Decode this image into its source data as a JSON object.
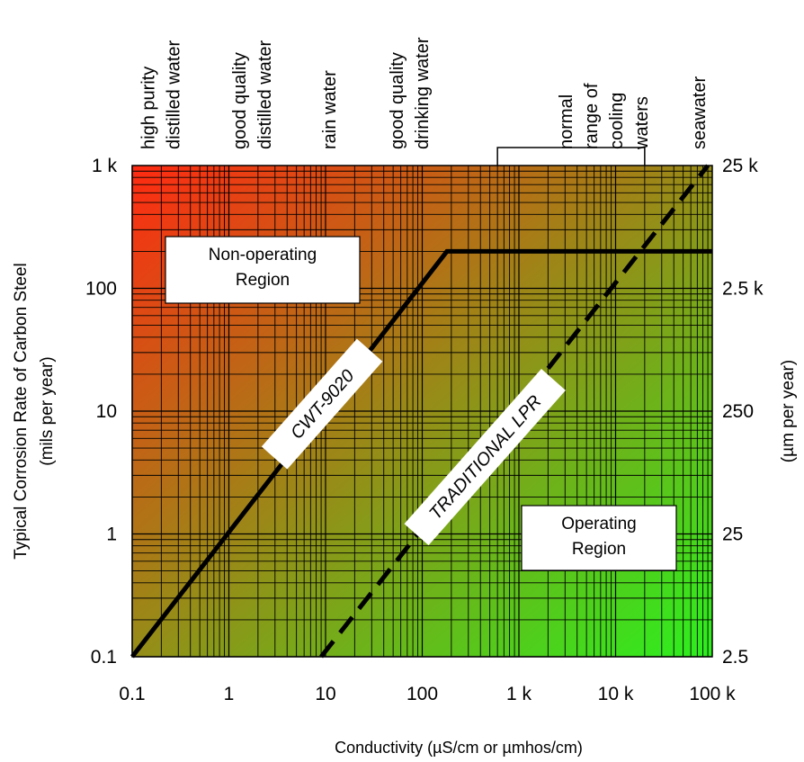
{
  "chart_data": {
    "type": "line",
    "x_scale": "log",
    "y_scale": "log",
    "xlim": [
      0.1,
      100000
    ],
    "ylim": [
      0.1,
      1000
    ],
    "y2lim": [
      2.5,
      25000
    ],
    "grid": true,
    "background_gradient": {
      "top_left": "#ff2a12",
      "bottom_right": "#2cf01e"
    },
    "xlabel": "Conductivity (µS/cm or µmhos/cm)",
    "ylabel_lines": [
      "Typical Corrosion Rate of Carbon Steel",
      "(mils per year)"
    ],
    "y2label": "(µm per year)",
    "x_ticks": [
      {
        "value": 0.1,
        "label": "0.1"
      },
      {
        "value": 1,
        "label": "1"
      },
      {
        "value": 10,
        "label": "10"
      },
      {
        "value": 100,
        "label": "100"
      },
      {
        "value": 1000,
        "label": "1 k"
      },
      {
        "value": 10000,
        "label": "10 k"
      },
      {
        "value": 100000,
        "label": "100 k"
      }
    ],
    "y_ticks": [
      {
        "value": 0.1,
        "label": "0.1"
      },
      {
        "value": 1,
        "label": "1"
      },
      {
        "value": 10,
        "label": "10"
      },
      {
        "value": 100,
        "label": "100"
      },
      {
        "value": 1000,
        "label": "1 k"
      }
    ],
    "y2_ticks": [
      {
        "value": 2.5,
        "label": "2.5"
      },
      {
        "value": 25,
        "label": "25"
      },
      {
        "value": 250,
        "label": "250"
      },
      {
        "value": 2500,
        "label": "2.5 k"
      },
      {
        "value": 25000,
        "label": "25 k"
      }
    ],
    "top_annotations": [
      {
        "x": 0.12,
        "lines": [
          "high purity",
          "distilled water"
        ]
      },
      {
        "x": 1.05,
        "lines": [
          "good quality",
          "distilled water"
        ]
      },
      {
        "x": 9.0,
        "lines": [
          "rain water"
        ]
      },
      {
        "x": 45,
        "lines": [
          "good quality",
          "drinking water"
        ]
      },
      {
        "x": 2500,
        "lines": [
          "normal",
          "range of",
          "cooling",
          "waters"
        ]
      },
      {
        "x": 60000,
        "lines": [
          "seawater"
        ]
      }
    ],
    "cooling_range_bracket": [
      600,
      20000
    ],
    "series": [
      {
        "name": "CWT-9020",
        "style": "solid",
        "x": [
          0.1,
          180,
          100000
        ],
        "y": [
          0.1,
          200,
          200
        ]
      },
      {
        "name": "TRADITIONAL LPR",
        "style": "dashed",
        "x": [
          9,
          90000
        ],
        "y": [
          0.1,
          1000
        ]
      }
    ],
    "region_labels": [
      {
        "lines": [
          "Non-operating",
          "Region"
        ]
      },
      {
        "lines": [
          "Operating",
          "Region"
        ]
      }
    ]
  }
}
